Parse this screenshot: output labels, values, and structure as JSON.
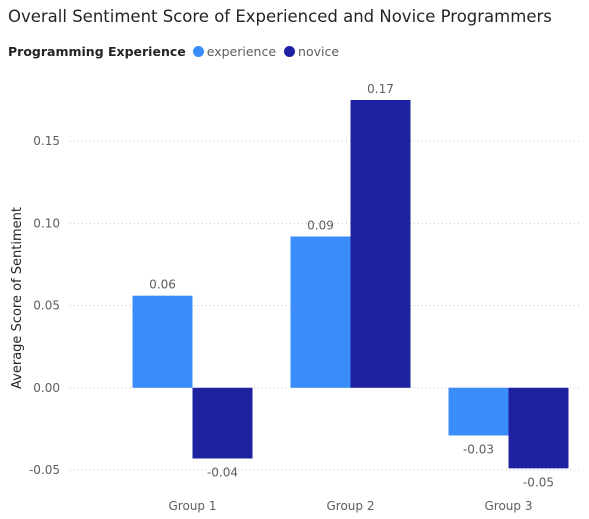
{
  "chart_data": {
    "type": "bar",
    "title": "Overall Sentiment Score of Experienced and Novice Programmers",
    "legend_title": "Programming Experience",
    "legend_position": "top-left",
    "ylabel": "Average Score of Sentiment",
    "xlabel": "",
    "categories": [
      "Group 1",
      "Group 2",
      "Group 3"
    ],
    "ylim": [
      -0.05,
      0.175
    ],
    "yticks": [
      -0.05,
      0.0,
      0.05,
      0.1,
      0.15
    ],
    "ytick_labels": [
      "-0.05",
      "0.00",
      "0.05",
      "0.10",
      "0.15"
    ],
    "grid": true,
    "series": [
      {
        "name": "experience",
        "color": "#3a8cf9",
        "values": [
          0.056,
          0.092,
          -0.029
        ],
        "labels": [
          "0.06",
          "0.09",
          "-0.03"
        ]
      },
      {
        "name": "novice",
        "color": "#1e22a0",
        "values": [
          -0.043,
          0.175,
          -0.049
        ],
        "labels": [
          "-0.04",
          "0.17",
          "-0.05"
        ]
      }
    ]
  }
}
